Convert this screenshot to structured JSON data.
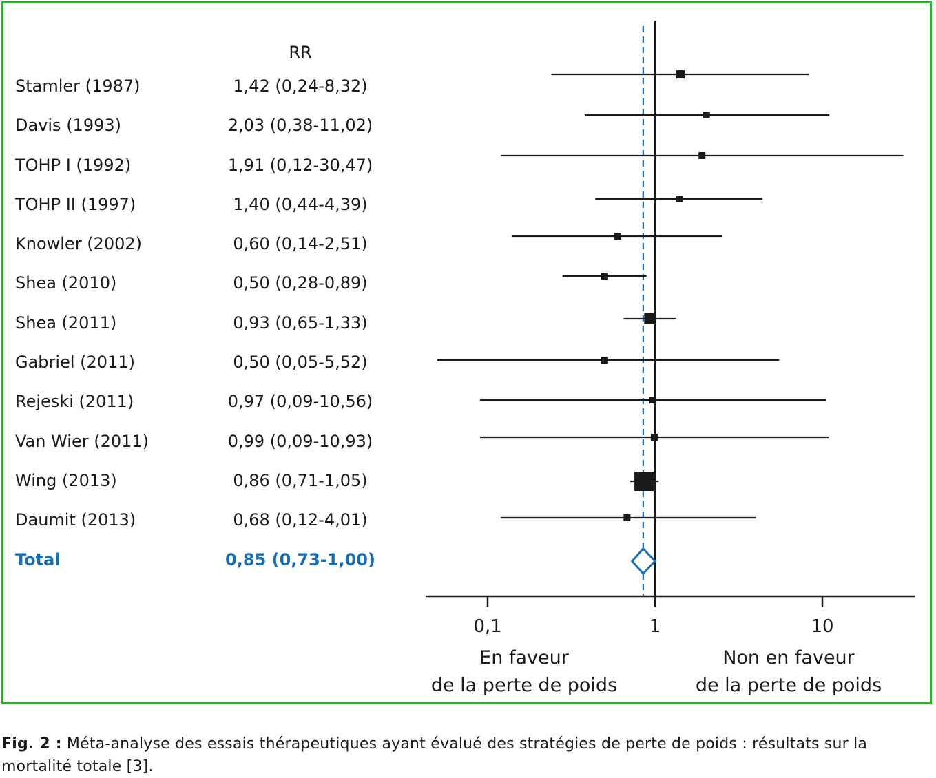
{
  "chart_data": {
    "type": "forest",
    "column_header": "RR",
    "x_scale": "log",
    "xlim": [
      0.05,
      30
    ],
    "x_ticks": [
      "0,1",
      "1",
      "10"
    ],
    "x_tick_values": [
      0.1,
      1,
      10
    ],
    "reference_line": 1,
    "pooled_line": 0.85,
    "left_label": [
      "En faveur",
      "de la perte de poids"
    ],
    "right_label": [
      "Non en faveur",
      "de la perte de poids"
    ],
    "studies": [
      {
        "name": "Stamler (1987)",
        "label": "1,42 (0,24-8,32)",
        "rr": 1.42,
        "lo": 0.24,
        "hi": 8.32,
        "size": 1.2
      },
      {
        "name": "Davis (1993)",
        "label": "2,03 (0,38-11,02)",
        "rr": 2.03,
        "lo": 0.38,
        "hi": 11.02,
        "size": 1.0
      },
      {
        "name": "TOHP I (1992)",
        "label": "1,91 (0,12-30,47)",
        "rr": 1.91,
        "lo": 0.12,
        "hi": 30.47,
        "size": 1.0
      },
      {
        "name": "TOHP II (1997)",
        "label": "1,40 (0,44-4,39)",
        "rr": 1.4,
        "lo": 0.44,
        "hi": 4.39,
        "size": 1.0
      },
      {
        "name": "Knowler (2002)",
        "label": "0,60 (0,14-2,51)",
        "rr": 0.6,
        "lo": 0.14,
        "hi": 2.51,
        "size": 1.0
      },
      {
        "name": "Shea (2010)",
        "label": "0,50 (0,28-0,89)",
        "rr": 0.5,
        "lo": 0.28,
        "hi": 0.89,
        "size": 1.0
      },
      {
        "name": "Shea (2011)",
        "label": "0,93 (0,65-1,33)",
        "rr": 0.93,
        "lo": 0.65,
        "hi": 1.33,
        "size": 1.6
      },
      {
        "name": "Gabriel (2011)",
        "label": "0,50 (0,05-5,52)",
        "rr": 0.5,
        "lo": 0.05,
        "hi": 5.52,
        "size": 1.0
      },
      {
        "name": "Rejeski (2011)",
        "label": "0,97 (0,09-10,56)",
        "rr": 0.97,
        "lo": 0.09,
        "hi": 10.56,
        "size": 1.0
      },
      {
        "name": "Van Wier (2011)",
        "label": "0,99 (0,09-10,93)",
        "rr": 0.99,
        "lo": 0.09,
        "hi": 10.93,
        "size": 1.0
      },
      {
        "name": "Wing (2013)",
        "label": "0,86 (0,71-1,05)",
        "rr": 0.86,
        "lo": 0.71,
        "hi": 1.05,
        "size": 2.8
      },
      {
        "name": "Daumit (2013)",
        "label": "0,68 (0,12-4,01)",
        "rr": 0.68,
        "lo": 0.12,
        "hi": 4.01,
        "size": 1.0
      }
    ],
    "total": {
      "name": "Total",
      "label": "0,85 (0,73-1,00)",
      "rr": 0.85,
      "lo": 0.73,
      "hi": 1.0
    }
  },
  "caption": {
    "prefix": "Fig. 2 :",
    "text": " Méta-analyse des essais thérapeutiques ayant évalué des stratégies de perte de poids : résultats sur la mortalité totale [3]."
  },
  "colors": {
    "border": "#3aa53a",
    "accent": "#1a6db0",
    "ink": "#1a1a1a"
  }
}
